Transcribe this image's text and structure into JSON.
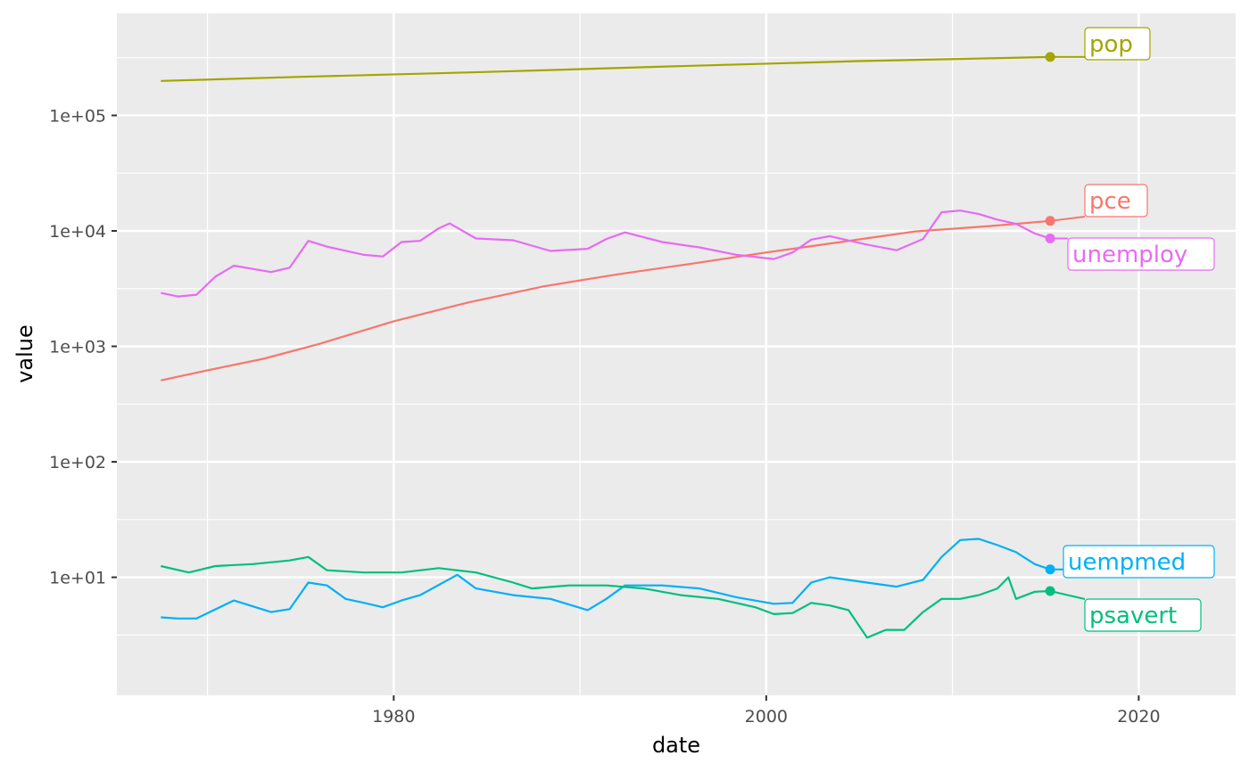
{
  "chart_data": {
    "type": "line",
    "xlabel": "date",
    "ylabel": "value",
    "x_scale": "date",
    "y_scale": "log10",
    "xlim": [
      "1965-02-19",
      "2025-03-15"
    ],
    "ylim": [
      0.95,
      765000
    ],
    "x_ticks": [
      {
        "value": "1980-01-01",
        "label": "1980"
      },
      {
        "value": "2000-01-01",
        "label": "2000"
      },
      {
        "value": "2020-01-01",
        "label": "2020"
      }
    ],
    "y_ticks": [
      {
        "value": 10,
        "label": "1e+01"
      },
      {
        "value": 100,
        "label": "1e+02"
      },
      {
        "value": 1000,
        "label": "1e+03"
      },
      {
        "value": 10000,
        "label": "1e+04"
      },
      {
        "value": 100000,
        "label": "1e+05"
      }
    ],
    "grid": true,
    "legend": "none",
    "label_position": "end-of-line",
    "series": [
      {
        "name": "pop",
        "color": "#A3A500",
        "points": [
          [
            "1967-07-01",
            198700
          ],
          [
            "1975-01-01",
            215900
          ],
          [
            "1985-01-01",
            237900
          ],
          [
            "1995-01-01",
            266300
          ],
          [
            "2005-01-01",
            295500
          ],
          [
            "2015-04-01",
            320800
          ]
        ]
      },
      {
        "name": "pce",
        "color": "#F8766D",
        "points": [
          [
            "1967-07-01",
            507
          ],
          [
            "1970-01-01",
            620
          ],
          [
            "1973-01-01",
            780
          ],
          [
            "1976-01-01",
            1050
          ],
          [
            "1980-01-01",
            1650
          ],
          [
            "1984-01-01",
            2400
          ],
          [
            "1988-01-01",
            3300
          ],
          [
            "1992-01-01",
            4200
          ],
          [
            "1996-01-01",
            5200
          ],
          [
            "2000-01-01",
            6500
          ],
          [
            "2004-01-01",
            8000
          ],
          [
            "2008-01-01",
            9900
          ],
          [
            "2012-01-01",
            11000
          ],
          [
            "2015-04-01",
            12200
          ]
        ]
      },
      {
        "name": "unemploy",
        "color": "#E76BF3",
        "points": [
          [
            "1967-07-01",
            2900
          ],
          [
            "1968-06-01",
            2700
          ],
          [
            "1969-06-01",
            2800
          ],
          [
            "1970-06-01",
            4000
          ],
          [
            "1971-06-01",
            5000
          ],
          [
            "1973-06-01",
            4400
          ],
          [
            "1974-06-01",
            4800
          ],
          [
            "1975-06-01",
            8200
          ],
          [
            "1976-06-01",
            7300
          ],
          [
            "1978-06-01",
            6200
          ],
          [
            "1979-06-01",
            6000
          ],
          [
            "1980-06-01",
            8000
          ],
          [
            "1981-06-01",
            8200
          ],
          [
            "1982-06-01",
            10500
          ],
          [
            "1983-01-01",
            11600
          ],
          [
            "1984-06-01",
            8600
          ],
          [
            "1986-06-01",
            8300
          ],
          [
            "1988-06-01",
            6700
          ],
          [
            "1990-06-01",
            7000
          ],
          [
            "1991-06-01",
            8500
          ],
          [
            "1992-06-01",
            9700
          ],
          [
            "1994-06-01",
            8000
          ],
          [
            "1996-06-01",
            7200
          ],
          [
            "1998-06-01",
            6200
          ],
          [
            "2000-06-01",
            5700
          ],
          [
            "2001-06-01",
            6500
          ],
          [
            "2002-06-01",
            8400
          ],
          [
            "2003-06-01",
            9000
          ],
          [
            "2005-06-01",
            7600
          ],
          [
            "2007-01-01",
            6800
          ],
          [
            "2008-06-01",
            8500
          ],
          [
            "2009-06-01",
            14500
          ],
          [
            "2010-06-01",
            15000
          ],
          [
            "2011-06-01",
            14000
          ],
          [
            "2012-06-01",
            12500
          ],
          [
            "2013-06-01",
            11500
          ],
          [
            "2014-06-01",
            9500
          ],
          [
            "2015-04-01",
            8600
          ]
        ]
      },
      {
        "name": "uempmed",
        "color": "#00B0F6",
        "points": [
          [
            "1967-07-01",
            4.5
          ],
          [
            "1968-06-01",
            4.4
          ],
          [
            "1969-06-01",
            4.4
          ],
          [
            "1971-06-01",
            6.3
          ],
          [
            "1973-06-01",
            5.0
          ],
          [
            "1974-06-01",
            5.3
          ],
          [
            "1975-06-01",
            9.0
          ],
          [
            "1976-06-01",
            8.5
          ],
          [
            "1977-06-01",
            6.5
          ],
          [
            "1978-06-01",
            6.0
          ],
          [
            "1979-06-01",
            5.5
          ],
          [
            "1980-06-01",
            6.3
          ],
          [
            "1981-06-01",
            7.0
          ],
          [
            "1983-06-01",
            10.5
          ],
          [
            "1984-06-01",
            8.0
          ],
          [
            "1986-06-01",
            7.0
          ],
          [
            "1988-06-01",
            6.5
          ],
          [
            "1990-06-01",
            5.2
          ],
          [
            "1991-06-01",
            6.5
          ],
          [
            "1992-06-01",
            8.5
          ],
          [
            "1994-06-01",
            8.5
          ],
          [
            "1996-06-01",
            8.0
          ],
          [
            "1998-06-01",
            6.7
          ],
          [
            "2000-06-01",
            5.9
          ],
          [
            "2001-06-01",
            6.0
          ],
          [
            "2002-06-01",
            9.0
          ],
          [
            "2003-06-01",
            10.0
          ],
          [
            "2005-06-01",
            9.0
          ],
          [
            "2007-01-01",
            8.3
          ],
          [
            "2008-06-01",
            9.5
          ],
          [
            "2009-06-01",
            15.0
          ],
          [
            "2010-06-01",
            21.0
          ],
          [
            "2011-06-01",
            21.5
          ],
          [
            "2012-06-01",
            19.0
          ],
          [
            "2013-06-01",
            16.5
          ],
          [
            "2014-06-01",
            13.0
          ],
          [
            "2015-04-01",
            11.7
          ]
        ]
      },
      {
        "name": "psavert",
        "color": "#00BF7D",
        "points": [
          [
            "1967-07-01",
            12.5
          ],
          [
            "1969-01-01",
            11.0
          ],
          [
            "1970-06-01",
            12.5
          ],
          [
            "1972-06-01",
            13.0
          ],
          [
            "1974-06-01",
            14.0
          ],
          [
            "1975-06-01",
            15.0
          ],
          [
            "1976-06-01",
            11.5
          ],
          [
            "1978-06-01",
            11.0
          ],
          [
            "1980-06-01",
            11.0
          ],
          [
            "1982-06-01",
            12.0
          ],
          [
            "1984-06-01",
            11.0
          ],
          [
            "1986-06-01",
            9.0
          ],
          [
            "1987-06-01",
            8.0
          ],
          [
            "1989-06-01",
            8.5
          ],
          [
            "1991-06-01",
            8.5
          ],
          [
            "1993-06-01",
            8.0
          ],
          [
            "1995-06-01",
            7.0
          ],
          [
            "1997-06-01",
            6.5
          ],
          [
            "1999-06-01",
            5.5
          ],
          [
            "2000-06-01",
            4.8
          ],
          [
            "2001-06-01",
            4.9
          ],
          [
            "2002-06-01",
            6.0
          ],
          [
            "2003-06-01",
            5.7
          ],
          [
            "2004-06-01",
            5.2
          ],
          [
            "2005-06-01",
            3.0
          ],
          [
            "2006-06-01",
            3.5
          ],
          [
            "2007-06-01",
            3.5
          ],
          [
            "2008-06-01",
            5.0
          ],
          [
            "2009-06-01",
            6.5
          ],
          [
            "2010-06-01",
            6.5
          ],
          [
            "2011-06-01",
            7.0
          ],
          [
            "2012-06-01",
            8.0
          ],
          [
            "2013-01-01",
            10.0
          ],
          [
            "2013-06-01",
            6.5
          ],
          [
            "2014-06-01",
            7.5
          ],
          [
            "2015-04-01",
            7.6
          ]
        ]
      }
    ]
  }
}
